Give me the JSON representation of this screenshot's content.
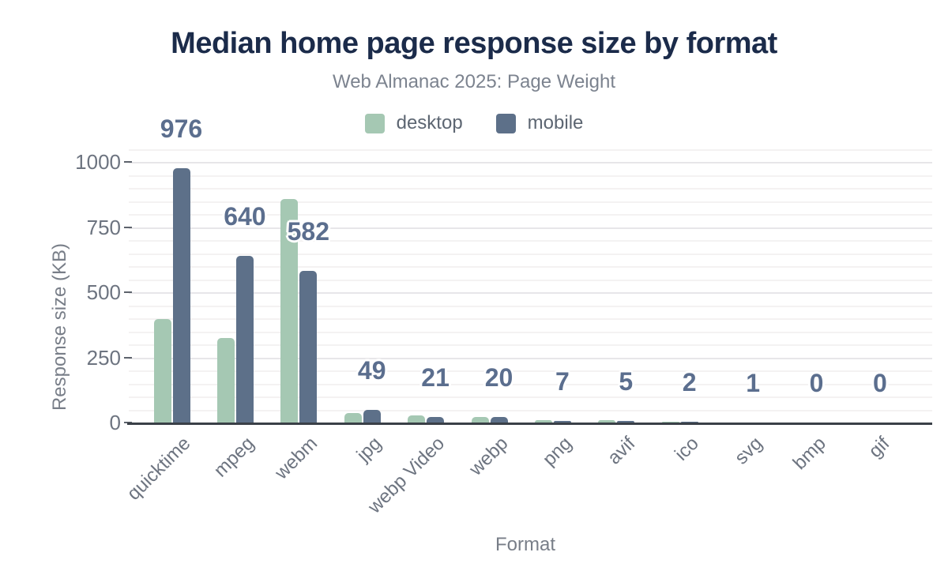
{
  "chart_data": {
    "type": "bar",
    "title": "Median home page response size by format",
    "subtitle": "Web Almanac 2025: Page Weight",
    "xlabel": "Format",
    "ylabel": "Response size (KB)",
    "categories": [
      "quicktime",
      "mpeg",
      "webm",
      "jpg",
      "webp Video",
      "webp",
      "png",
      "avif",
      "ico",
      "svg",
      "bmp",
      "gif"
    ],
    "series": [
      {
        "name": "desktop",
        "color": "#a5c8b3",
        "values": [
          398,
          323,
          858,
          36,
          28,
          21,
          9,
          8,
          2,
          1,
          0,
          0
        ]
      },
      {
        "name": "mobile",
        "color": "#5d7089",
        "values": [
          976,
          640,
          582,
          49,
          21,
          20,
          7,
          5,
          2,
          1,
          0,
          0
        ]
      }
    ],
    "value_labels": [
      "976",
      "640",
      "582",
      "49",
      "21",
      "20",
      "7",
      "5",
      "2",
      "1",
      "0",
      "0"
    ],
    "value_label_series": "mobile",
    "y_ticks": [
      0,
      250,
      500,
      750,
      1000
    ],
    "ylim": [
      0,
      1050
    ],
    "grid_step": 50,
    "grid": true,
    "legend_position": "top",
    "accent_colors": {
      "title": "#1b2b4a",
      "value_label": "#5b6e8e",
      "axis": "#3a4047"
    }
  }
}
